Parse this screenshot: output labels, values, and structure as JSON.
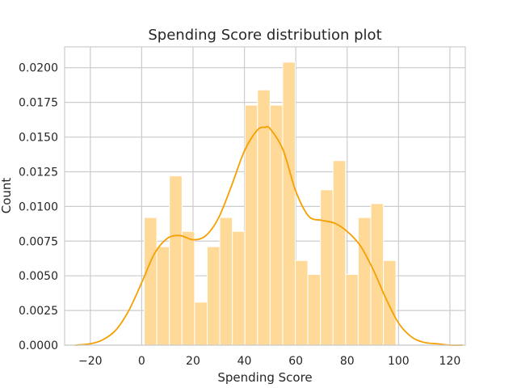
{
  "chart_data": {
    "type": "bar",
    "title": "Spending Score distribution plot",
    "xlabel": "Spending Score",
    "ylabel": "Count",
    "xlim": [
      -30,
      126
    ],
    "ylim": [
      0,
      0.0215
    ],
    "xticks": [
      -20,
      0,
      20,
      40,
      60,
      80,
      100,
      120
    ],
    "xtick_labels": [
      "−20",
      "0",
      "20",
      "40",
      "60",
      "80",
      "100",
      "120"
    ],
    "yticks": [
      0,
      0.0025,
      0.005,
      0.0075,
      0.01,
      0.0125,
      0.015,
      0.0175,
      0.02
    ],
    "ytick_labels": [
      "0.0000",
      "0.0025",
      "0.0050",
      "0.0075",
      "0.0100",
      "0.0125",
      "0.0150",
      "0.0175",
      "0.0200"
    ],
    "grid": true,
    "bins": {
      "start": 1,
      "width": 4.9,
      "values": [
        0.0092,
        0.0071,
        0.0122,
        0.0082,
        0.0031,
        0.0071,
        0.0092,
        0.0082,
        0.0173,
        0.0184,
        0.0173,
        0.0204,
        0.0061,
        0.0051,
        0.0112,
        0.0133,
        0.0051,
        0.0092,
        0.0102,
        0.0061
      ]
    },
    "kde": {
      "x": [
        -26,
        -20,
        -15,
        -10,
        -5,
        0,
        5,
        10,
        15,
        20,
        25,
        30,
        35,
        40,
        45,
        48,
        50,
        55,
        60,
        65,
        70,
        75,
        80,
        85,
        90,
        95,
        100,
        105,
        110,
        115,
        120,
        125
      ],
      "y": [
        0.0,
        0.0001,
        0.0004,
        0.0011,
        0.0025,
        0.0045,
        0.0066,
        0.0077,
        0.0079,
        0.0076,
        0.0079,
        0.0092,
        0.0115,
        0.014,
        0.0155,
        0.0157,
        0.0156,
        0.0141,
        0.0111,
        0.0093,
        0.009,
        0.0088,
        0.0082,
        0.0072,
        0.0055,
        0.0034,
        0.0016,
        0.0006,
        0.0002,
        0.0001,
        0.0,
        0.0
      ]
    },
    "colors": {
      "bar_fill": "#ffd998",
      "bar_edge": "#ffffff",
      "kde_line": "#f5a000",
      "grid": "#cccccc",
      "background": "#ffffff",
      "text": "#262626"
    }
  }
}
